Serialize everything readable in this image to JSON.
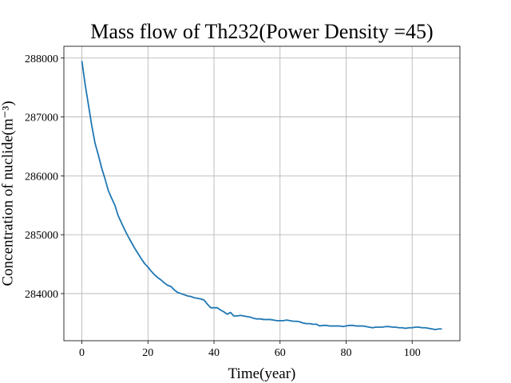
{
  "chart_data": {
    "type": "line",
    "title": "Mass flow of Th232(Power Density =45)",
    "xlabel": "Time(year)",
    "ylabel": "Concentration of nuclide(m⁻³)",
    "xlim": [
      -5.45,
      114.45
    ],
    "ylim": [
      283200,
      288200
    ],
    "xticks": [
      0,
      20,
      40,
      60,
      80,
      100
    ],
    "yticks": [
      284000,
      285000,
      286000,
      287000,
      288000
    ],
    "grid": true,
    "series": [
      {
        "color": "#1f77b4",
        "x": [
          0,
          1,
          2,
          3,
          4,
          5,
          6,
          7,
          8,
          9,
          10,
          11,
          12,
          13,
          14,
          15,
          16,
          17,
          18,
          19,
          20,
          21,
          22,
          23,
          24,
          25,
          26,
          27,
          28,
          29,
          30,
          31,
          32,
          33,
          34,
          35,
          36,
          37,
          38,
          39,
          40,
          41,
          42,
          43,
          44,
          45,
          46,
          47,
          48,
          49,
          50,
          51,
          52,
          53,
          54,
          55,
          56,
          57,
          58,
          59,
          60,
          61,
          62,
          63,
          64,
          65,
          66,
          67,
          68,
          69,
          70,
          71,
          72,
          73,
          74,
          75,
          76,
          77,
          78,
          79,
          80,
          81,
          82,
          83,
          84,
          85,
          86,
          87,
          88,
          89,
          90,
          91,
          92,
          93,
          94,
          95,
          96,
          97,
          98,
          99,
          100,
          101,
          102,
          103,
          104,
          105,
          106,
          107,
          108,
          109
        ],
        "y": [
          287950,
          287550,
          287200,
          286850,
          286550,
          286350,
          286130,
          285950,
          285750,
          285620,
          285500,
          285320,
          285200,
          285080,
          284970,
          284870,
          284770,
          284680,
          284590,
          284510,
          284450,
          284380,
          284320,
          284270,
          284230,
          284180,
          284140,
          284120,
          284060,
          284020,
          284000,
          283980,
          283960,
          283950,
          283930,
          283920,
          283910,
          283890,
          283820,
          283760,
          283760,
          283760,
          283720,
          283690,
          283650,
          283680,
          283620,
          283620,
          283630,
          283620,
          283610,
          283600,
          283580,
          283570,
          283570,
          283560,
          283560,
          283560,
          283550,
          283540,
          283540,
          283540,
          283550,
          283540,
          283530,
          283530,
          283520,
          283500,
          283490,
          283490,
          283480,
          283480,
          283450,
          283460,
          283460,
          283450,
          283450,
          283450,
          283450,
          283440,
          283450,
          283460,
          283460,
          283450,
          283450,
          283450,
          283440,
          283430,
          283420,
          283430,
          283430,
          283430,
          283440,
          283440,
          283430,
          283430,
          283420,
          283420,
          283410,
          283420,
          283420,
          283430,
          283430,
          283420,
          283420,
          283410,
          283400,
          283390,
          283400,
          283400
        ]
      }
    ]
  }
}
